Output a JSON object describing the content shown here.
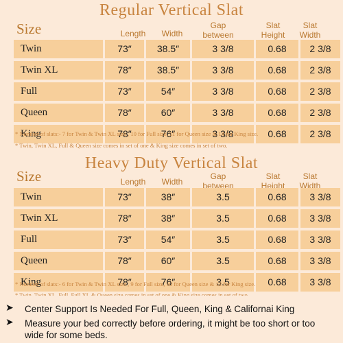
{
  "regular": {
    "title": "Regular Vertical Slat",
    "headers": {
      "size": "Size",
      "length": "Length",
      "width": "Width",
      "gap": "Gap between slats",
      "height": "Slat Height",
      "slat_width": "Slat Width"
    },
    "rows": [
      {
        "size": "Twin",
        "length": "73″",
        "width": "38.5″",
        "gap": "3 3/8",
        "height": "0.68",
        "slat_width": "2 3/8"
      },
      {
        "size": "Twin XL",
        "length": "78″",
        "width": "38.5″",
        "gap": "3 3/8",
        "height": "0.68",
        "slat_width": "2 3/8"
      },
      {
        "size": "Full",
        "length": "73″",
        "width": "54″",
        "gap": "3 3/8",
        "height": "0.68",
        "slat_width": "2 3/8"
      },
      {
        "size": "Queen",
        "length": "78″",
        "width": "60″",
        "gap": "3 3/8",
        "height": "0.68",
        "slat_width": "2 3/8"
      },
      {
        "size": "King",
        "length": "78″",
        "width": "76″",
        "gap": "3 3/8",
        "height": "0.68",
        "slat_width": "2 3/8"
      }
    ],
    "note1": "* Number of slats:- 7 for Twin & Twin XL size , 10 for Full size, 11 for Queen size & 14 for King size.",
    "note2": "* Twin, Twin XL, Full & Queen size comes in set of  one &  King size comes in set of two."
  },
  "heavy": {
    "title": "Heavy Duty Vertical Slat",
    "headers": {
      "size": "Size",
      "length": "Length",
      "width": "Width",
      "gap": "Gap between slats",
      "height": "Slat Height",
      "slat_width": "Slat Width"
    },
    "rows": [
      {
        "size": "Twin",
        "length": "73″",
        "width": "38″",
        "gap": "3.5",
        "height": "0.68",
        "slat_width": "3 3/8"
      },
      {
        "size": "Twin XL",
        "length": "78″",
        "width": "38″",
        "gap": "3.5",
        "height": "0.68",
        "slat_width": "3 3/8"
      },
      {
        "size": "Full",
        "length": "73″",
        "width": "54″",
        "gap": "3.5",
        "height": "0.68",
        "slat_width": "3 3/8"
      },
      {
        "size": "Queen",
        "length": "78″",
        "width": "60″",
        "gap": "3.5",
        "height": "0.68",
        "slat_width": "3 3/8"
      },
      {
        "size": "King",
        "length": "78″",
        "width": "76″",
        "gap": "3.5",
        "height": "0.68",
        "slat_width": "3 3/8"
      }
    ],
    "note1": "* Number of slats:- 6 for Twin & Twin XL size , 9 for Full size, 10 for Queen size & 12 for King size.",
    "note2": "* Twin, Twin XL, Full, Full XL & Queen size comes in set of  one &  King size comes in set of  two."
  },
  "bullets": [
    {
      "icon": "arrow-bullet-icon",
      "symbol": "➤",
      "text": "Center Support Is Needed For Full, Queen, King & Californai King"
    },
    {
      "icon": "arrow-bullet-icon",
      "symbol": "➤",
      "text": "Measure your bed correctly before ordering, it might be too short or too wide for some beds."
    }
  ],
  "colors": {
    "background": "#fcead9",
    "row_fill": "#f7cf9b",
    "accent": "#c8843f"
  }
}
